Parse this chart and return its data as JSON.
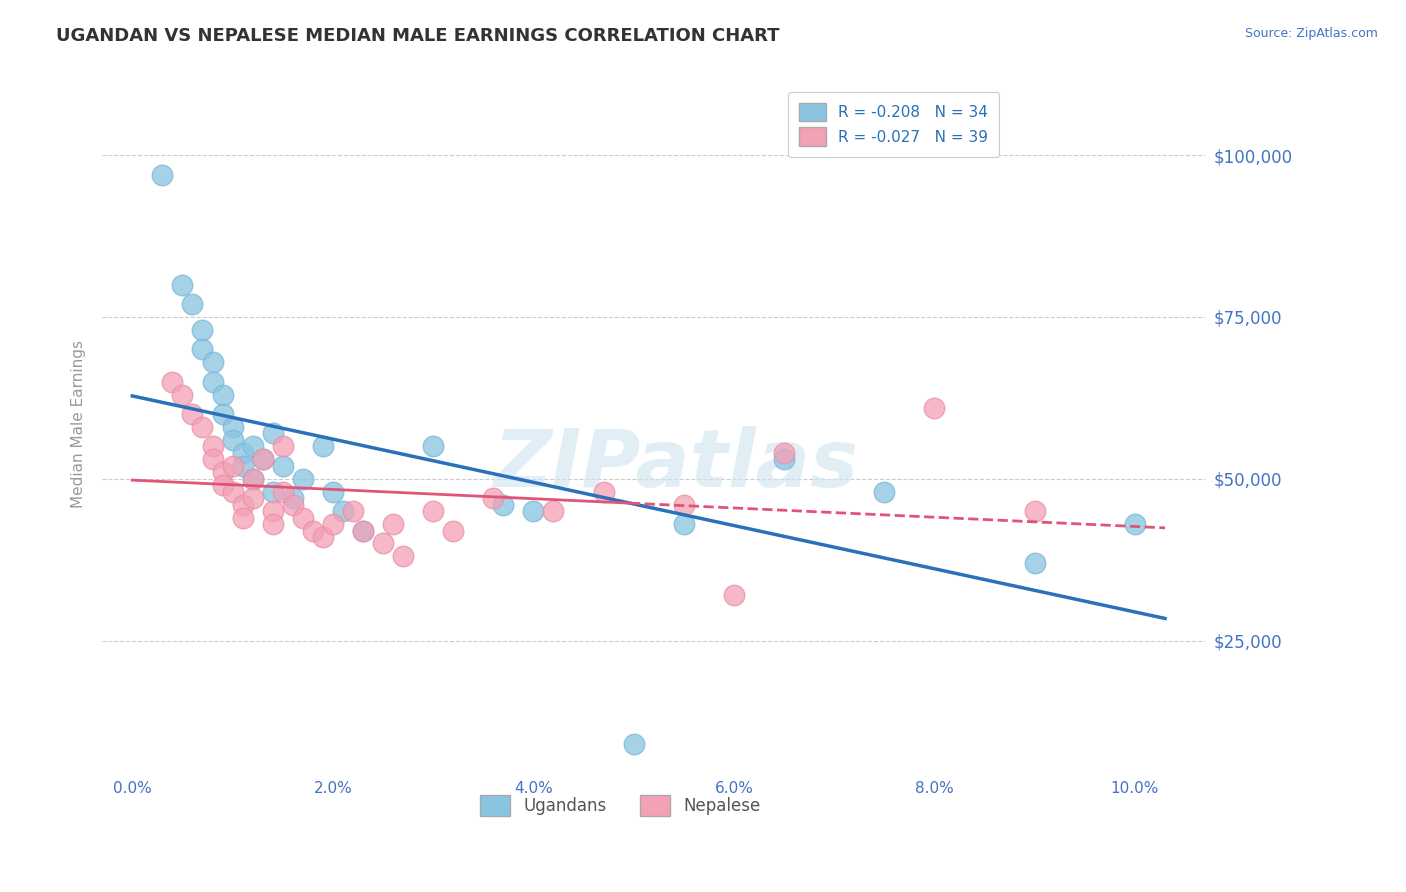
{
  "title": "UGANDAN VS NEPALESE MEDIAN MALE EARNINGS CORRELATION CHART",
  "source": "Source: ZipAtlas.com",
  "ylabel": "Median Male Earnings",
  "ugandan_color": "#89c4e1",
  "nepalese_color": "#f4a0b5",
  "ugandan_line_color": "#2971b8",
  "nepalese_line_color": "#e05575",
  "legend_R_ugandan": "R = -0.208",
  "legend_N_ugandan": "N = 34",
  "legend_R_nepalese": "R = -0.027",
  "legend_N_nepalese": "N = 39",
  "watermark": "ZIPatlas",
  "ugandan_x": [
    0.003,
    0.005,
    0.006,
    0.007,
    0.007,
    0.008,
    0.008,
    0.009,
    0.009,
    0.01,
    0.01,
    0.011,
    0.011,
    0.012,
    0.012,
    0.013,
    0.014,
    0.014,
    0.015,
    0.016,
    0.017,
    0.019,
    0.02,
    0.021,
    0.023,
    0.03,
    0.037,
    0.04,
    0.05,
    0.055,
    0.065,
    0.075,
    0.09,
    0.1
  ],
  "ugandan_y": [
    97000,
    80000,
    77000,
    73000,
    70000,
    68000,
    65000,
    63000,
    60000,
    58000,
    56000,
    54000,
    52000,
    55000,
    50000,
    53000,
    57000,
    48000,
    52000,
    47000,
    50000,
    55000,
    48000,
    45000,
    42000,
    55000,
    46000,
    45000,
    9000,
    43000,
    53000,
    48000,
    37000,
    43000
  ],
  "nepalese_x": [
    0.004,
    0.005,
    0.006,
    0.007,
    0.008,
    0.008,
    0.009,
    0.009,
    0.01,
    0.01,
    0.011,
    0.011,
    0.012,
    0.012,
    0.013,
    0.014,
    0.014,
    0.015,
    0.015,
    0.016,
    0.017,
    0.018,
    0.019,
    0.02,
    0.022,
    0.023,
    0.025,
    0.026,
    0.027,
    0.03,
    0.032,
    0.036,
    0.042,
    0.047,
    0.055,
    0.06,
    0.065,
    0.08,
    0.09
  ],
  "nepalese_y": [
    65000,
    63000,
    60000,
    58000,
    55000,
    53000,
    51000,
    49000,
    52000,
    48000,
    46000,
    44000,
    50000,
    47000,
    53000,
    45000,
    43000,
    55000,
    48000,
    46000,
    44000,
    42000,
    41000,
    43000,
    45000,
    42000,
    40000,
    43000,
    38000,
    45000,
    42000,
    47000,
    45000,
    48000,
    46000,
    32000,
    54000,
    61000,
    45000
  ],
  "ylim_min": 5000,
  "ylim_max": 112000,
  "xlim_min": -0.003,
  "xlim_max": 0.107,
  "ytick_positions": [
    25000,
    50000,
    75000,
    100000
  ],
  "ytick_labels": [
    "$25,000",
    "$50,000",
    "$75,000",
    "$100,000"
  ],
  "xtick_positions": [
    0.0,
    0.02,
    0.04,
    0.06,
    0.08,
    0.1
  ],
  "xtick_labels": [
    "0.0%",
    "2.0%",
    "4.0%",
    "6.0%",
    "8.0%",
    "10.0%"
  ],
  "background_color": "#ffffff",
  "grid_color": "#cccccc",
  "title_color": "#333333",
  "right_tick_color": "#4472c4",
  "watermark_color": "#d0e4f0"
}
